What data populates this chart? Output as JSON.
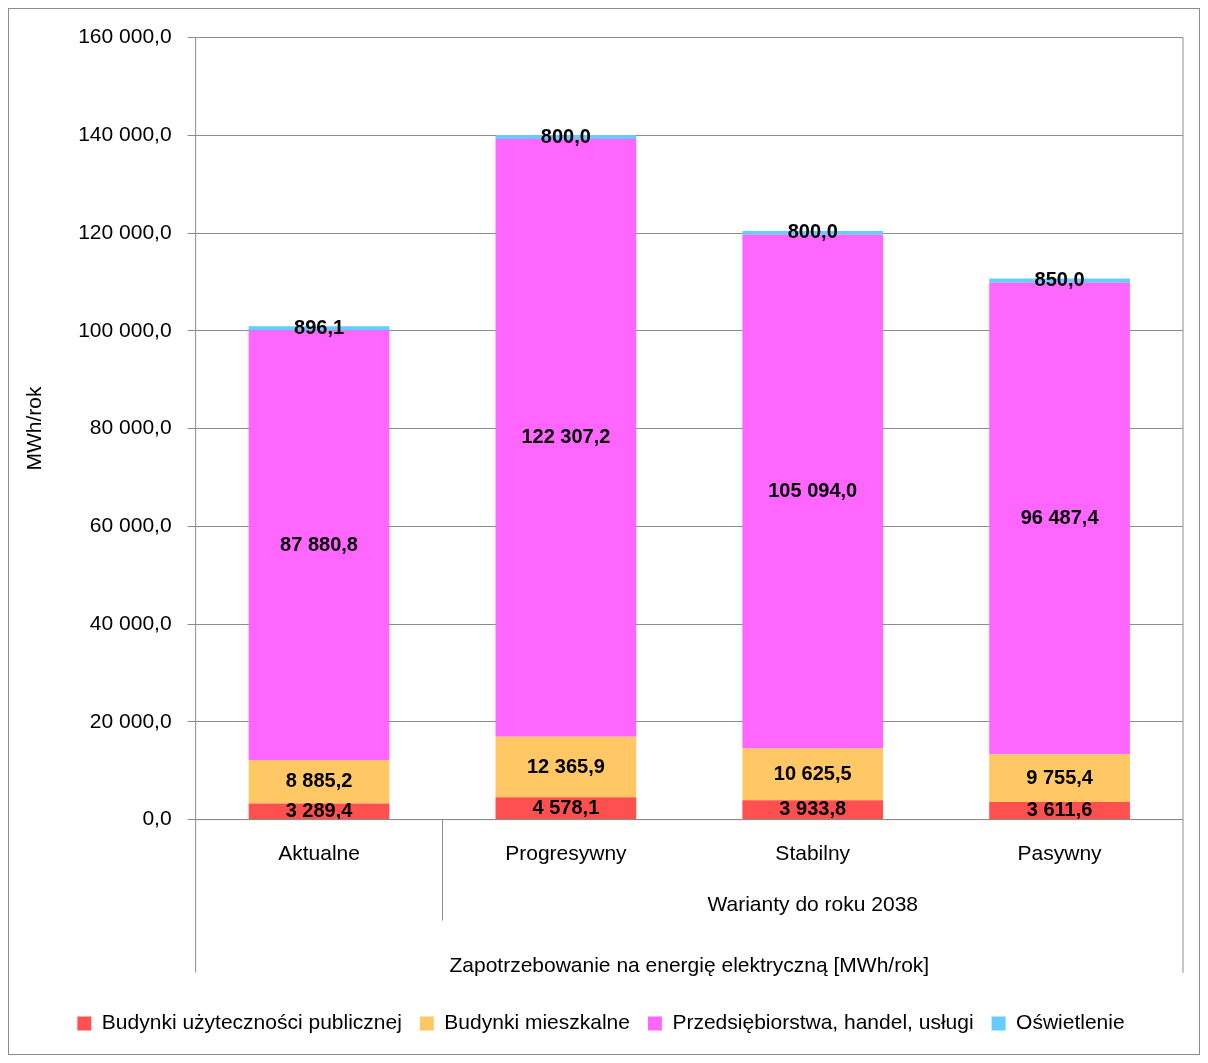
{
  "chart_data": {
    "type": "bar",
    "stacked": true,
    "ylabel": "MWh/rok",
    "xlabel": "Zapotrzebowanie na energię elektryczną [MWh/rok]",
    "annotations": [
      "Warianty do roku 2038"
    ],
    "categories": [
      "Aktualne",
      "Progresywny",
      "Stabilny",
      "Pasywny"
    ],
    "series": [
      {
        "name": "Budynki użyteczności publicznej",
        "color": "#ff5050",
        "values": [
          3289.4,
          4578.1,
          3933.8,
          3611.6
        ],
        "value_labels": [
          "3 289,4",
          "4 578,1",
          "3 933,8",
          "3 611,6"
        ]
      },
      {
        "name": "Budynki mieszkalne",
        "color": "#ffc864",
        "values": [
          8885.2,
          12365.9,
          10625.5,
          9755.4
        ],
        "value_labels": [
          "8 885,2",
          "12 365,9",
          "10 625,5",
          "9 755,4"
        ]
      },
      {
        "name": "Przedsiębiorstwa, handel, usługi",
        "color": "#ff66ff",
        "values": [
          87880.8,
          122307.2,
          105094.0,
          96487.4
        ],
        "value_labels": [
          "87 880,8",
          "122 307,2",
          "105 094,0",
          "96 487,4"
        ]
      },
      {
        "name": "Oświetlenie",
        "color": "#66ccff",
        "values": [
          896.1,
          800.0,
          800.0,
          850.0
        ],
        "value_labels": [
          "896,1",
          "800,0",
          "800,0",
          "850,0"
        ]
      }
    ],
    "ylim": [
      0,
      160000
    ],
    "yticks": [
      {
        "value": 0,
        "label": "0,0"
      },
      {
        "value": 20000,
        "label": "20 000,0"
      },
      {
        "value": 40000,
        "label": "40 000,0"
      },
      {
        "value": 60000,
        "label": "60 000,0"
      },
      {
        "value": 80000,
        "label": "80 000,0"
      },
      {
        "value": 100000,
        "label": "100 000,0"
      },
      {
        "value": 120000,
        "label": "120 000,0"
      },
      {
        "value": 140000,
        "label": "140 000,0"
      },
      {
        "value": 160000,
        "label": "160 000,0"
      }
    ],
    "grid": "y",
    "legend": "bottom"
  }
}
